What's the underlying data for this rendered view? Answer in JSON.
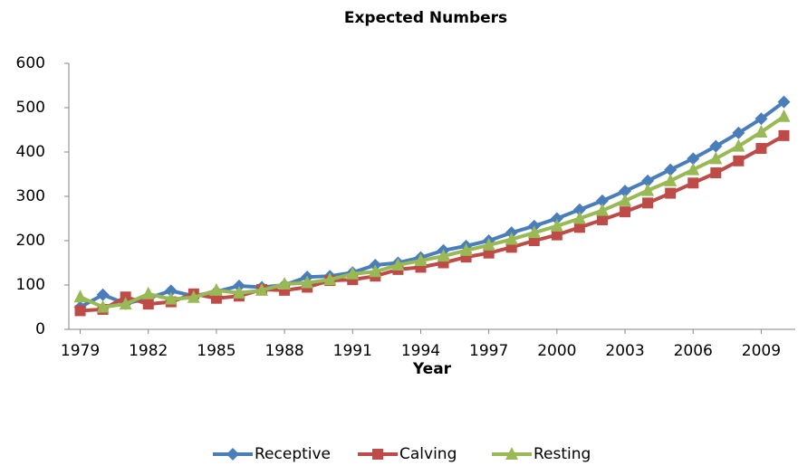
{
  "chart_data": {
    "type": "line",
    "title": "Expected Numbers",
    "x_label": "Year",
    "x": [
      1979,
      1980,
      1981,
      1982,
      1983,
      1984,
      1985,
      1986,
      1987,
      1988,
      1989,
      1990,
      1991,
      1992,
      1993,
      1994,
      1995,
      1996,
      1997,
      1998,
      1999,
      2000,
      2001,
      2002,
      2003,
      2004,
      2005,
      2006,
      2007,
      2008,
      2009,
      2010
    ],
    "series": [
      {
        "name": "Receptive",
        "color": "#4a7ebb",
        "marker": "diamond",
        "values": [
          50,
          78,
          58,
          70,
          87,
          75,
          85,
          98,
          95,
          100,
          118,
          120,
          128,
          145,
          150,
          162,
          178,
          188,
          200,
          218,
          233,
          250,
          270,
          290,
          312,
          335,
          360,
          385,
          413,
          443,
          475,
          513
        ]
      },
      {
        "name": "Calving",
        "color": "#be4b48",
        "marker": "square",
        "values": [
          42,
          45,
          73,
          57,
          62,
          80,
          70,
          75,
          90,
          88,
          95,
          110,
          112,
          120,
          135,
          140,
          150,
          163,
          172,
          185,
          200,
          213,
          230,
          247,
          265,
          285,
          307,
          330,
          353,
          380,
          408,
          437
        ]
      },
      {
        "name": "Resting",
        "color": "#98b954",
        "marker": "triangle",
        "values": [
          73,
          50,
          57,
          80,
          68,
          72,
          88,
          82,
          88,
          102,
          105,
          112,
          125,
          130,
          145,
          155,
          165,
          178,
          190,
          203,
          218,
          233,
          250,
          268,
          290,
          313,
          335,
          360,
          385,
          413,
          445,
          480
        ]
      }
    ],
    "xlim": [
      1978.5,
      2010.5
    ],
    "xticks": [
      1979,
      1982,
      1985,
      1988,
      1991,
      1994,
      1997,
      2000,
      2003,
      2006,
      2009
    ],
    "ylim": [
      0,
      600
    ],
    "yticks": [
      0,
      100,
      200,
      300,
      400,
      500,
      600
    ],
    "legend": "bottom"
  }
}
